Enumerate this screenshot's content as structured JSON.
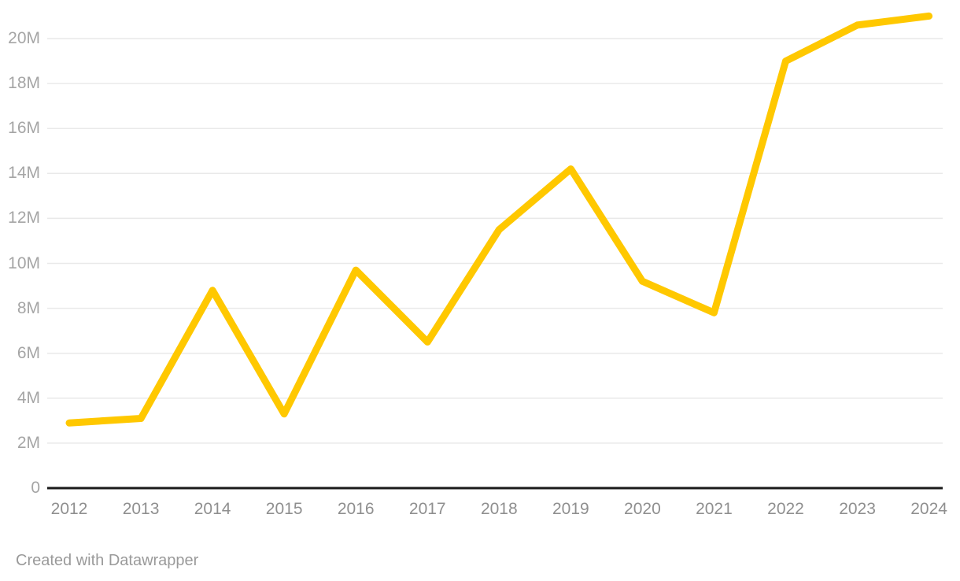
{
  "chart_data": {
    "type": "line",
    "title": "",
    "categories": [
      "2012",
      "2013",
      "2014",
      "2015",
      "2016",
      "2017",
      "2018",
      "2019",
      "2020",
      "2021",
      "2022",
      "2023",
      "2024"
    ],
    "series": [
      {
        "name": "value",
        "values_millions": [
          2.9,
          3.1,
          8.8,
          3.3,
          9.7,
          6.5,
          11.5,
          14.2,
          9.2,
          7.8,
          19.0,
          20.6,
          21.0
        ]
      }
    ],
    "y_axis": {
      "unit": "M",
      "tick_values_millions": [
        0,
        2,
        4,
        6,
        8,
        10,
        12,
        14,
        16,
        18,
        20
      ],
      "tick_labels": [
        "0",
        "2M",
        "4M",
        "6M",
        "8M",
        "10M",
        "12M",
        "14M",
        "16M",
        "18M",
        "20M"
      ],
      "range_millions": [
        0,
        21.5
      ]
    },
    "grid": "horizontal",
    "legend": "none"
  },
  "colors": {
    "line": "#FFC800",
    "gridline": "#E9E9E9",
    "baseline": "#1A1A1A",
    "y_label": "#A5A5A5",
    "x_label": "#8F8F8F",
    "footer_text": "#9A9A9A"
  },
  "footer": {
    "text": "Created with Datawrapper"
  }
}
